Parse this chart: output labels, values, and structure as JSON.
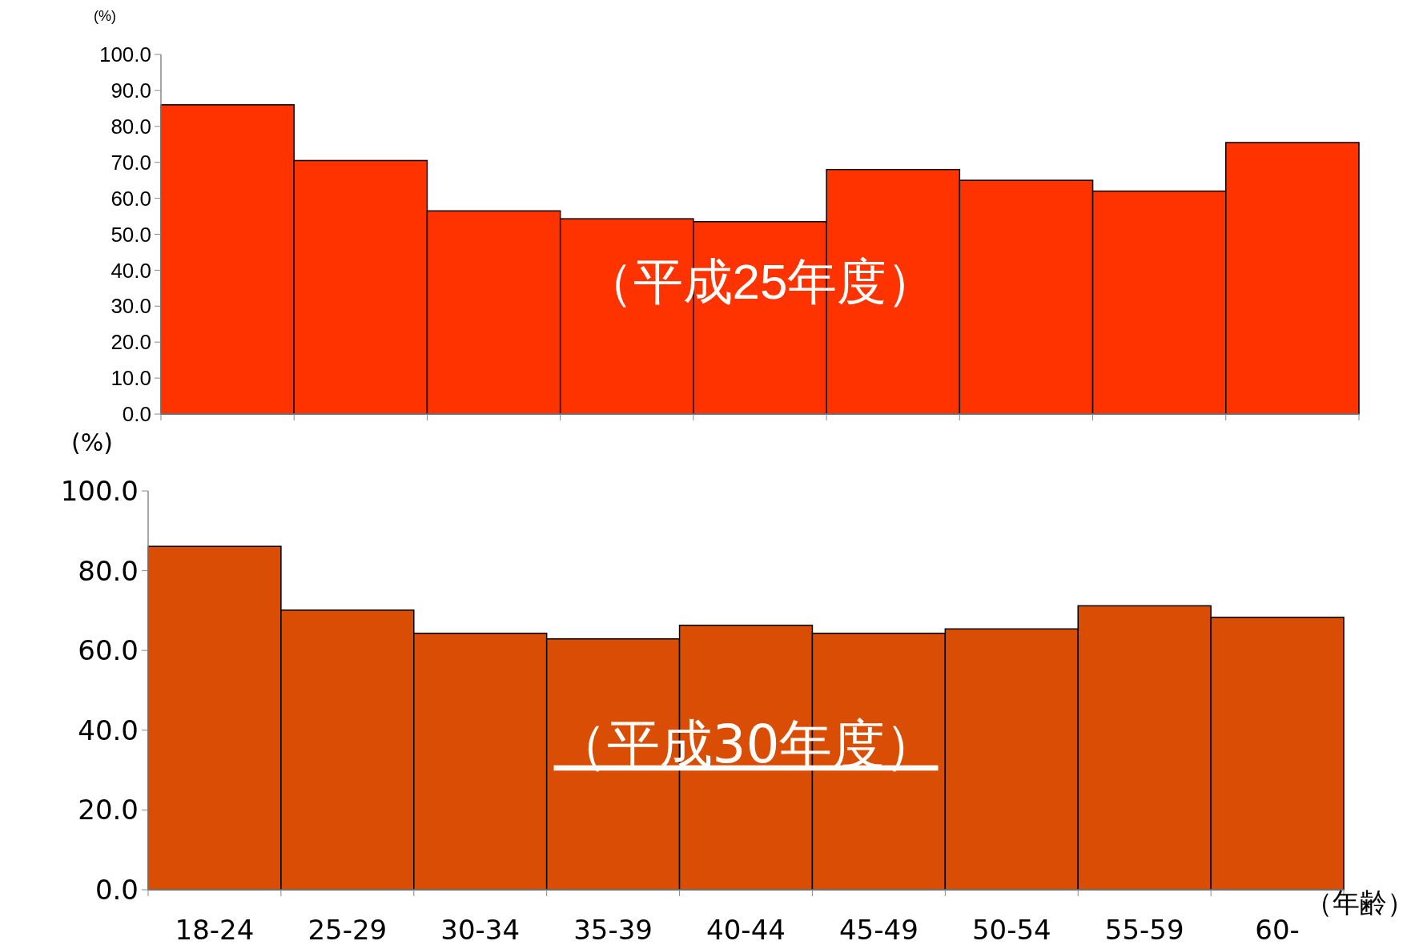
{
  "chart_data": [
    {
      "type": "bar",
      "categories": [
        null,
        null,
        null,
        null,
        null,
        null,
        null,
        null,
        null
      ],
      "values": [
        86.0,
        70.5,
        56.5,
        54.3,
        53.5,
        68.0,
        65.0,
        62.0,
        75.5
      ],
      "color": "#ff3300",
      "ylabel": "(%)",
      "ylim": [
        0,
        100
      ],
      "yticks": [
        {
          "value": 0,
          "label": "0.0"
        },
        {
          "value": 10,
          "label": "10.0"
        },
        {
          "value": 20,
          "label": "20.0"
        },
        {
          "value": 30,
          "label": "30.0"
        },
        {
          "value": 40,
          "label": "40.0"
        },
        {
          "value": 50,
          "label": "50.0"
        },
        {
          "value": 60,
          "label": "60.0"
        },
        {
          "value": 70,
          "label": "70.0"
        },
        {
          "value": 80,
          "label": "80.0"
        },
        {
          "value": 90,
          "label": "90.0"
        },
        {
          "value": 100,
          "label": "100.0"
        }
      ],
      "tick_labels": "y",
      "grid": false,
      "annotations": [
        "（平成25年度）"
      ]
    },
    {
      "type": "bar",
      "categories": [
        "18-24",
        "25-29",
        "30-34",
        "35-39",
        "40-44",
        "45-49",
        "50-54",
        "55-59",
        "60-"
      ],
      "values": [
        86.1,
        70.1,
        64.3,
        62.9,
        66.3,
        64.3,
        65.4,
        71.2,
        68.3
      ],
      "color": "#d94e04",
      "ylabel": "(%)",
      "xlabel": "（年齢）",
      "ylim": [
        0,
        100
      ],
      "yticks": [
        {
          "value": 0,
          "label": "0.0"
        },
        {
          "value": 20,
          "label": "20.0"
        },
        {
          "value": 40,
          "label": "40.0"
        },
        {
          "value": 60,
          "label": "60.0"
        },
        {
          "value": 80,
          "label": "80.0"
        },
        {
          "value": 100,
          "label": "100.0"
        }
      ],
      "grid": false,
      "annotations": [
        "（平成30年度）"
      ]
    }
  ]
}
